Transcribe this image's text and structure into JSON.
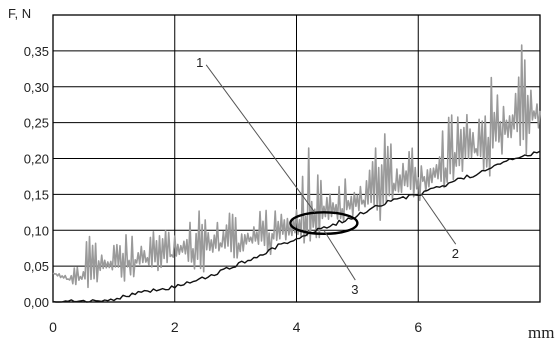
{
  "chart_data": {
    "type": "line",
    "title": "",
    "xlabel": "mm",
    "ylabel": "F, N",
    "xlim": [
      0,
      8
    ],
    "ylim": [
      0,
      0.4
    ],
    "x_ticks": [
      "0",
      "2",
      "4",
      "6"
    ],
    "y_ticks": [
      "0,00",
      "0,05",
      "0,10",
      "0,15",
      "0,20",
      "0,25",
      "0,30",
      "0,35"
    ],
    "grid": true,
    "legend": "none",
    "series": [
      {
        "color": "#9a9a9a",
        "x": [
          0,
          0.3,
          0.6,
          0.9,
          1.2,
          1.5,
          1.8,
          2.1,
          2.4,
          2.7,
          3.0,
          3.3,
          3.6,
          3.9,
          4.2,
          4.5,
          4.8,
          5.1,
          5.4,
          5.7,
          6.0,
          6.3,
          6.6,
          6.9,
          7.2,
          7.5,
          7.8,
          8.0
        ],
        "y": [
          0.04,
          0.03,
          0.04,
          0.05,
          0.05,
          0.06,
          0.06,
          0.07,
          0.07,
          0.08,
          0.08,
          0.09,
          0.09,
          0.1,
          0.11,
          0.12,
          0.13,
          0.14,
          0.15,
          0.16,
          0.17,
          0.18,
          0.19,
          0.21,
          0.22,
          0.24,
          0.26,
          0.26
        ],
        "noise": [
          0.0,
          0.01,
          0.05,
          0.015,
          0.07,
          0.02,
          0.055,
          0.01,
          0.08,
          0.03,
          0.05,
          0.015,
          0.07,
          0.01,
          0.11,
          0.03,
          0.06,
          0.015,
          0.09,
          0.03,
          0.07,
          0.02,
          0.11,
          0.03,
          0.12,
          0.04,
          0.13,
          0.05
        ]
      },
      {
        "color": "#111111",
        "x": [
          0,
          0.5,
          1.0,
          1.5,
          2.0,
          2.5,
          3.0,
          3.5,
          4.0,
          4.5,
          5.0,
          5.5,
          6.0,
          6.5,
          7.0,
          7.5,
          8.0
        ],
        "y": [
          0.0,
          0.0,
          0.005,
          0.015,
          0.02,
          0.035,
          0.05,
          0.07,
          0.09,
          0.105,
          0.12,
          0.14,
          0.15,
          0.165,
          0.18,
          0.2,
          0.21
        ]
      }
    ],
    "annotations": [
      {
        "text": "1",
        "label_x": 2.45,
        "label_y": 0.325,
        "target_x": 4.3,
        "target_y": 0.125
      },
      {
        "text": "2",
        "label_x": 6.55,
        "label_y": 0.075,
        "target_x": 6.05,
        "target_y": 0.15
      },
      {
        "text": "3",
        "label_x": 4.9,
        "label_y": 0.025,
        "target_x": 4.45,
        "target_y": 0.1
      }
    ],
    "ellipse": {
      "cx": 4.45,
      "cy": 0.11,
      "rx": 0.55,
      "ry": 0.015
    }
  }
}
